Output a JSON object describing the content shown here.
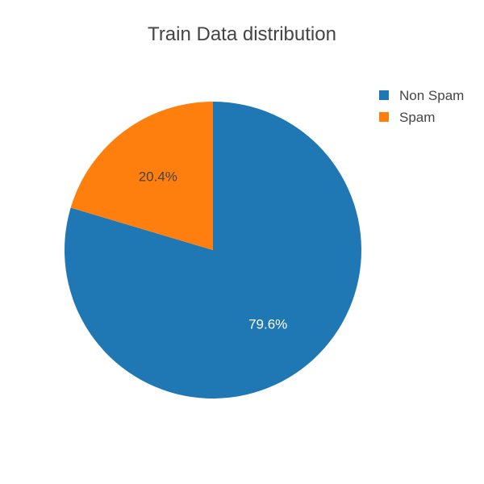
{
  "chart_data": {
    "type": "pie",
    "title": "Train Data distribution",
    "slices": [
      {
        "label": "Non Spam",
        "value": 79.6,
        "display": "79.6%",
        "color": "#1f77b4",
        "text_color": "#ffffff"
      },
      {
        "label": "Spam",
        "value": 20.4,
        "display": "20.4%",
        "color": "#ff7f0e",
        "text_color": "#444444"
      }
    ],
    "direction": "clockwise",
    "start": "top",
    "legend_position": "top-right"
  }
}
